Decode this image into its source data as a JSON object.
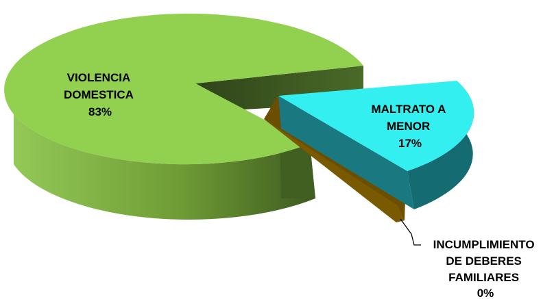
{
  "chart_data": {
    "type": "pie",
    "style": "3d-exploded",
    "title": "",
    "legend": "none",
    "slices": [
      {
        "label_lines": [
          "VIOLENCIA",
          "DOMESTICA"
        ],
        "value_label": "83%",
        "value": 83,
        "color_top": "#92d050",
        "color_side": "#5e8a2a"
      },
      {
        "label_lines": [
          "MALTRATO A",
          "MENOR"
        ],
        "value_label": "17%",
        "value": 17,
        "color_top": "#33eff0",
        "color_side": "#156b72"
      },
      {
        "label_lines": [
          "INCUMPLIMIENTO",
          "DE DEBERES",
          "FAMILIARES"
        ],
        "value_label": "0%",
        "value": 0,
        "color_top": "#7a5a00",
        "color_side": "#6b4e00"
      }
    ]
  }
}
